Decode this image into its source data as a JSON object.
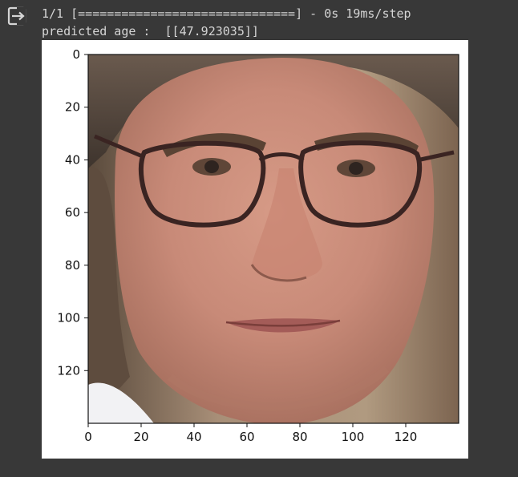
{
  "console": {
    "progress_line": "1/1 [==============================] - 0s 19ms/step",
    "prediction_line": "predicted age :  [[47.923035]]"
  },
  "icons": {
    "output": "output-redirect-icon"
  },
  "colors": {
    "background": "#383838",
    "text": "#d5d5d5",
    "figure_background": "#ffffff"
  },
  "chart_data": {
    "type": "image",
    "xlim": [
      0,
      140
    ],
    "ylim": [
      140,
      0
    ],
    "x_ticks": [
      0,
      20,
      40,
      60,
      80,
      100,
      120
    ],
    "y_ticks": [
      0,
      20,
      40,
      60,
      80,
      100,
      120
    ],
    "x_tick_labels": [
      "0",
      "20",
      "40",
      "60",
      "80",
      "100",
      "120"
    ],
    "y_tick_labels": [
      "0",
      "20",
      "40",
      "60",
      "80",
      "100",
      "120"
    ],
    "title": "",
    "xlabel": "",
    "ylabel": "",
    "grid": false
  }
}
